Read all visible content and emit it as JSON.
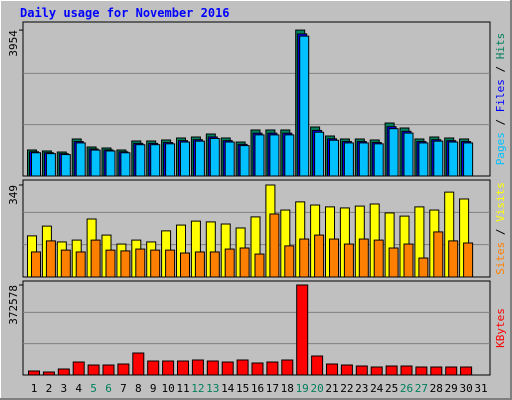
{
  "chart_data": {
    "type": "bar",
    "title": "Daily usage for November 2016",
    "categories": [
      "1",
      "2",
      "3",
      "4",
      "5",
      "6",
      "7",
      "8",
      "9",
      "10",
      "11",
      "12",
      "13",
      "14",
      "15",
      "16",
      "17",
      "18",
      "19",
      "20",
      "21",
      "22",
      "23",
      "24",
      "25",
      "26",
      "27",
      "28",
      "29",
      "30",
      "31"
    ],
    "category_colors": [
      "#000",
      "#000",
      "#000",
      "#000",
      "#00805c",
      "#00805c",
      "#000",
      "#000",
      "#000",
      "#000",
      "#000",
      "#00805c",
      "#00805c",
      "#000",
      "#000",
      "#000",
      "#000",
      "#000",
      "#00805c",
      "#00805c",
      "#000",
      "#000",
      "#000",
      "#000",
      "#000",
      "#00805c",
      "#00805c",
      "#000",
      "#000",
      "#000",
      "#000"
    ],
    "legend_separator": " / ",
    "panels": [
      {
        "ylim": [
          0,
          4173
        ],
        "yticks": [
          3954
        ],
        "series": [
          {
            "name": "Hits",
            "color": "#00805c",
            "values": [
              705,
              678,
              650,
              1003,
              786,
              759,
              705,
              949,
              949,
              976,
              1030,
              1057,
              1138,
              1030,
              921,
              1247,
              1247,
              1247,
              3954,
              1328,
              1084,
              1003,
              1003,
              976,
              1436,
              1301,
              1003,
              1057,
              1030,
              1003,
              null
            ]
          },
          {
            "name": "Files",
            "color": "#0000ff",
            "values": [
              656,
              631,
              605,
              933,
              731,
              706,
              656,
              883,
              883,
              908,
              958,
              983,
              1058,
              958,
              857,
              1160,
              1160,
              1160,
              3850,
              1235,
              1008,
              933,
              933,
              908,
              1335,
              1210,
              933,
              983,
              958,
              933,
              null
            ]
          },
          {
            "name": "Pages",
            "color": "#00c0ff",
            "values": [
              630,
              606,
              581,
              896,
              702,
              678,
              630,
              848,
              848,
              872,
              920,
              944,
              1016,
              920,
              823,
              1114,
              1114,
              1114,
              3790,
              1186,
              968,
              896,
              896,
              872,
              1282,
              1162,
              896,
              944,
              920,
              896,
              null
            ]
          }
        ]
      },
      {
        "ylim": [
          0,
          368
        ],
        "yticks": [
          349
        ],
        "series": [
          {
            "name": "Visits",
            "color": "#ffff00",
            "values": [
              156,
              193,
              133,
              140,
              220,
              159,
              125,
              140,
              133,
              175,
              197,
              212,
              209,
              201,
              186,
              228,
              349,
              254,
              285,
              273,
              266,
              262,
              269,
              277,
              243,
              231,
              266,
              254,
              322,
              296,
              null
            ]
          },
          {
            "name": "Sites",
            "color": "#ff8000",
            "values": [
              95,
              137,
              102,
              95,
              140,
              102,
              99,
              106,
              102,
              102,
              91,
              95,
              95,
              106,
              110,
              87,
              239,
              118,
              144,
              159,
              144,
              125,
              144,
              140,
              110,
              125,
              72,
              171,
              137,
              129,
              null
            ]
          }
        ]
      },
      {
        "ylim": [
          0,
          389160
        ],
        "yticks": [
          372578
        ],
        "series": [
          {
            "name": "KBytes",
            "color": "#ff0000",
            "values": [
              16560,
              12420,
              24840,
              53820,
              41400,
              41400,
              45540,
              91080,
              57960,
              57960,
              57960,
              62100,
              57960,
              53820,
              62100,
              49680,
              53820,
              62100,
              372578,
              78660,
              45540,
              41400,
              37260,
              33120,
              37260,
              37260,
              33120,
              33120,
              33120,
              33120,
              null
            ]
          }
        ]
      }
    ]
  }
}
